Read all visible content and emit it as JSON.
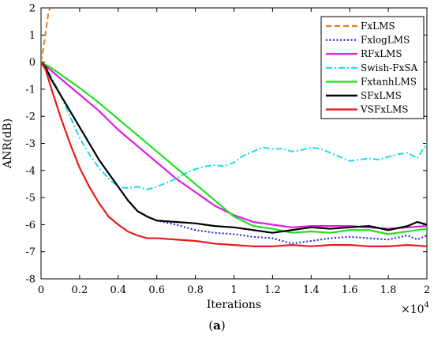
{
  "chart_data": {
    "type": "line",
    "xlabel": "Iterations",
    "ylabel": "ANR(dB)",
    "x_multiplier": "×10",
    "x_multiplier_exp": "4",
    "caption_open": "(",
    "caption_letter": "a",
    "caption_close": ")",
    "xlim": [
      0,
      20000
    ],
    "ylim": [
      -8,
      2
    ],
    "x_ticks": [
      0,
      2000,
      4000,
      6000,
      8000,
      10000,
      12000,
      14000,
      16000,
      18000,
      20000
    ],
    "x_tick_labels": [
      "0",
      "0.2",
      "0.4",
      "0.6",
      "0.8",
      "1",
      "1.2",
      "1.4",
      "1.6",
      "1.8",
      "2"
    ],
    "y_ticks": [
      2,
      1,
      0,
      -1,
      -2,
      -3,
      -4,
      -5,
      -6,
      -7,
      -8
    ],
    "y_tick_labels": [
      "2",
      "1",
      "0",
      "-1",
      "-2",
      "-3",
      "-4",
      "-5",
      "-6",
      "-7",
      "-8"
    ],
    "grid": false,
    "legend_position": "top-right",
    "series": [
      {
        "name": "FxLMS",
        "color": "#d9822b",
        "style": "dashed",
        "x": [
          0,
          100,
          200,
          300,
          400,
          500
        ],
        "y": [
          0,
          0.4,
          0.9,
          1.4,
          1.9,
          2.0
        ]
      },
      {
        "name": "FxlogLMS",
        "color": "#1f1fdc",
        "style": "dotted",
        "x": [
          0,
          250,
          500,
          1000,
          1500,
          2000,
          2500,
          3000,
          3500,
          4000,
          4500,
          5000,
          5500,
          6000,
          7000,
          8000,
          9000,
          10000,
          11000,
          12000,
          13000,
          14000,
          15000,
          16000,
          17000,
          18000,
          19000,
          19500,
          20000
        ],
        "y": [
          0,
          -0.2,
          -0.6,
          -1.2,
          -1.8,
          -2.4,
          -3.0,
          -3.6,
          -4.1,
          -4.6,
          -5.1,
          -5.5,
          -5.7,
          -5.85,
          -6.0,
          -6.2,
          -6.3,
          -6.35,
          -6.45,
          -6.5,
          -6.7,
          -6.6,
          -6.5,
          -6.45,
          -6.5,
          -6.55,
          -6.4,
          -6.55,
          -6.4
        ]
      },
      {
        "name": "RFxLMS",
        "color": "#e11be1",
        "style": "solid",
        "x": [
          0,
          500,
          1000,
          1500,
          2000,
          2500,
          3000,
          4000,
          5000,
          6000,
          7000,
          8000,
          9000,
          10000,
          11000,
          12000,
          13000,
          14000,
          15000,
          16000,
          17000,
          18000,
          19000,
          20000
        ],
        "y": [
          0,
          -0.3,
          -0.6,
          -0.9,
          -1.2,
          -1.5,
          -1.8,
          -2.5,
          -3.1,
          -3.7,
          -4.3,
          -4.8,
          -5.3,
          -5.65,
          -5.9,
          -6.0,
          -6.1,
          -6.05,
          -6.05,
          -6.05,
          -6.1,
          -6.15,
          -6.1,
          -6.05
        ]
      },
      {
        "name": "Swish-FxSA",
        "color": "#17dfe6",
        "style": "dashdot",
        "x": [
          0,
          250,
          500,
          1000,
          1500,
          2000,
          2500,
          3000,
          3500,
          4000,
          4500,
          5000,
          5500,
          6000,
          6500,
          7000,
          7500,
          8000,
          8500,
          9000,
          9500,
          10000,
          10500,
          11000,
          11500,
          12000,
          12500,
          13000,
          13500,
          14000,
          14500,
          15000,
          15500,
          16000,
          16500,
          17000,
          17500,
          18000,
          18500,
          19000,
          19500,
          20000
        ],
        "y": [
          0,
          -0.2,
          -0.5,
          -1.2,
          -2.0,
          -2.8,
          -3.4,
          -3.9,
          -4.3,
          -4.6,
          -4.65,
          -4.6,
          -4.7,
          -4.6,
          -4.45,
          -4.3,
          -4.1,
          -3.95,
          -3.85,
          -3.8,
          -3.85,
          -3.7,
          -3.45,
          -3.3,
          -3.15,
          -3.2,
          -3.2,
          -3.3,
          -3.25,
          -3.15,
          -3.2,
          -3.35,
          -3.5,
          -3.65,
          -3.6,
          -3.55,
          -3.6,
          -3.5,
          -3.4,
          -3.35,
          -3.55,
          -3.0
        ]
      },
      {
        "name": "FxtanhLMS",
        "color": "#22e022",
        "style": "solid",
        "x": [
          0,
          500,
          1000,
          2000,
          3000,
          4000,
          5000,
          6000,
          7000,
          8000,
          9000,
          10000,
          11000,
          12000,
          13000,
          14000,
          15000,
          16000,
          17000,
          18000,
          19000,
          20000
        ],
        "y": [
          0,
          -0.2,
          -0.45,
          -0.95,
          -1.5,
          -2.1,
          -2.7,
          -3.3,
          -3.9,
          -4.5,
          -5.1,
          -5.7,
          -6.05,
          -6.15,
          -6.3,
          -6.25,
          -6.3,
          -6.2,
          -6.2,
          -6.35,
          -6.25,
          -6.15
        ]
      },
      {
        "name": "SFxLMS",
        "color": "#000000",
        "style": "solid",
        "x": [
          0,
          250,
          500,
          1000,
          1500,
          2000,
          2500,
          3000,
          3500,
          4000,
          4500,
          5000,
          5500,
          6000,
          7000,
          8000,
          9000,
          10000,
          11000,
          12000,
          13000,
          14000,
          15000,
          16000,
          17000,
          18000,
          19000,
          19500,
          20000
        ],
        "y": [
          0,
          -0.2,
          -0.6,
          -1.2,
          -1.8,
          -2.4,
          -3.0,
          -3.6,
          -4.1,
          -4.6,
          -5.1,
          -5.5,
          -5.7,
          -5.85,
          -5.9,
          -5.95,
          -6.05,
          -6.1,
          -6.2,
          -6.3,
          -6.2,
          -6.1,
          -6.15,
          -6.1,
          -6.05,
          -6.2,
          -6.05,
          -5.9,
          -6.0
        ]
      },
      {
        "name": "VSFxLMS",
        "color": "#e81b1b",
        "style": "solid",
        "x": [
          0,
          250,
          500,
          1000,
          1500,
          2000,
          2500,
          3000,
          3500,
          4000,
          4500,
          5000,
          5500,
          6000,
          7000,
          8000,
          9000,
          10000,
          11000,
          12000,
          13000,
          14000,
          15000,
          16000,
          17000,
          18000,
          19000,
          20000
        ],
        "y": [
          0,
          -0.3,
          -0.9,
          -2.0,
          -3.0,
          -3.9,
          -4.6,
          -5.2,
          -5.7,
          -6.0,
          -6.25,
          -6.4,
          -6.5,
          -6.5,
          -6.55,
          -6.6,
          -6.7,
          -6.75,
          -6.8,
          -6.8,
          -6.75,
          -6.8,
          -6.75,
          -6.75,
          -6.8,
          -6.8,
          -6.75,
          -6.8
        ]
      }
    ]
  }
}
